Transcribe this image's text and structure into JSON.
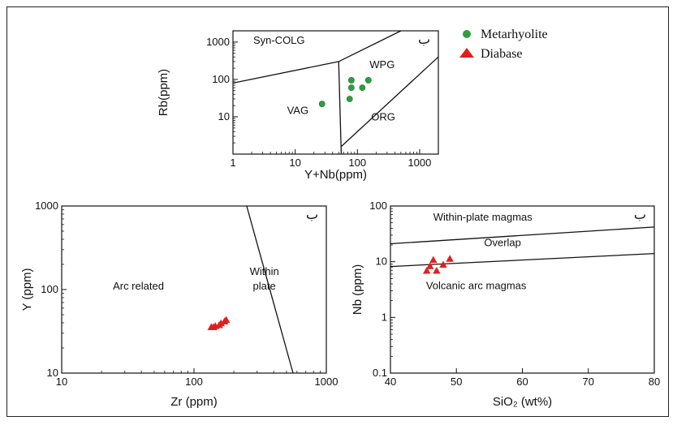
{
  "legend": [
    {
      "label": "Metarhyolite",
      "color": "#2e9e3e",
      "marker": "circle"
    },
    {
      "label": "Diabase",
      "color": "#e02020",
      "marker": "triangle"
    }
  ],
  "chart_data": [
    {
      "id": "rb-ynb",
      "type": "scatter",
      "title": "",
      "xlabel": "Y+Nb(ppm)",
      "ylabel": "Rb(ppm)",
      "xscale": "log",
      "yscale": "log",
      "xlim": [
        1,
        2000
      ],
      "ylim": [
        1,
        2000
      ],
      "xticks": [
        {
          "v": 1,
          "label": "1"
        },
        {
          "v": 10,
          "label": "10"
        },
        {
          "v": 100,
          "label": "100"
        },
        {
          "v": 1000,
          "label": "1000"
        }
      ],
      "yticks": [
        {
          "v": 10,
          "label": "10"
        },
        {
          "v": 100,
          "label": "100"
        },
        {
          "v": 1000,
          "label": "1000"
        }
      ],
      "corner_label": "ب",
      "regions": [
        {
          "label": "Syn-COLG",
          "x": 5.5,
          "y": 900
        },
        {
          "label": "WPG",
          "x": 250,
          "y": 200
        },
        {
          "label": "VAG",
          "x": 11,
          "y": 12
        },
        {
          "label": "ORG",
          "x": 260,
          "y": 8
        }
      ],
      "boundaries": [
        [
          [
            1,
            80
          ],
          [
            50,
            300
          ],
          [
            500,
            2000
          ]
        ],
        [
          [
            50,
            300
          ],
          [
            55,
            1
          ]
        ],
        [
          [
            55,
            1.6
          ],
          [
            2000,
            400
          ]
        ]
      ],
      "series": [
        {
          "name": "Metarhyolite",
          "marker": "circle",
          "color": "#2e9e3e",
          "points": [
            [
              27,
              22
            ],
            [
              80,
              95
            ],
            [
              80,
              60
            ],
            [
              120,
              60
            ],
            [
              150,
              95
            ],
            [
              75,
              30
            ]
          ]
        }
      ]
    },
    {
      "id": "y-zr",
      "type": "scatter",
      "title": "",
      "xlabel": "Zr (ppm)",
      "ylabel": "Y (ppm)",
      "xscale": "log",
      "yscale": "log",
      "xlim": [
        10,
        1000
      ],
      "ylim": [
        10,
        1000
      ],
      "xticks": [
        {
          "v": 10,
          "label": "10"
        },
        {
          "v": 100,
          "label": "100"
        },
        {
          "v": 1000,
          "label": "1000"
        }
      ],
      "yticks": [
        {
          "v": 10,
          "label": "10"
        },
        {
          "v": 100,
          "label": "100"
        },
        {
          "v": 1000,
          "label": "1000"
        }
      ],
      "corner_label": "ب",
      "regions": [
        {
          "label": "Arc related",
          "x": 38,
          "y": 100
        },
        {
          "label": "Within",
          "x": 340,
          "y": 150
        },
        {
          "label": "plate",
          "x": 340,
          "y": 100
        }
      ],
      "boundaries": [
        [
          [
            250,
            1000
          ],
          [
            560,
            10
          ]
        ]
      ],
      "series": [
        {
          "name": "Diabase",
          "marker": "triangle",
          "color": "#e02020",
          "points": [
            [
              135,
              36
            ],
            [
              145,
              37
            ],
            [
              155,
              38
            ],
            [
              160,
              40
            ],
            [
              170,
              42
            ],
            [
              175,
              44
            ],
            [
              140,
              36
            ]
          ]
        }
      ]
    },
    {
      "id": "nb-sio2",
      "type": "scatter",
      "title": "",
      "xlabel": "SiO₂ (wt%)",
      "ylabel": "Nb (ppm)",
      "xscale": "linear",
      "yscale": "log",
      "xlim": [
        40,
        80
      ],
      "ylim": [
        0.1,
        100
      ],
      "xticks": [
        {
          "v": 40,
          "label": "40"
        },
        {
          "v": 50,
          "label": "50"
        },
        {
          "v": 60,
          "label": "60"
        },
        {
          "v": 70,
          "label": "70"
        },
        {
          "v": 80,
          "label": "80"
        }
      ],
      "yticks": [
        {
          "v": 0.1,
          "label": "0.1"
        },
        {
          "v": 1,
          "label": "1"
        },
        {
          "v": 10,
          "label": "10"
        },
        {
          "v": 100,
          "label": "100"
        }
      ],
      "corner_label": "ب",
      "regions": [
        {
          "label": "Within-plate magmas",
          "x": 54,
          "y": 55
        },
        {
          "label": "Overlap",
          "x": 57,
          "y": 19
        },
        {
          "label": "Volcanic arc magmas",
          "x": 53,
          "y": 3.2
        }
      ],
      "boundaries": [
        [
          [
            40,
            21
          ],
          [
            80,
            42
          ]
        ],
        [
          [
            40,
            8.2
          ],
          [
            80,
            14
          ]
        ]
      ],
      "series": [
        {
          "name": "Diabase",
          "marker": "triangle",
          "color": "#e02020",
          "points": [
            [
              45.5,
              7
            ],
            [
              46,
              8.5
            ],
            [
              46.5,
              11
            ],
            [
              47,
              7
            ],
            [
              48,
              9
            ],
            [
              49,
              11.5
            ]
          ]
        }
      ]
    }
  ]
}
